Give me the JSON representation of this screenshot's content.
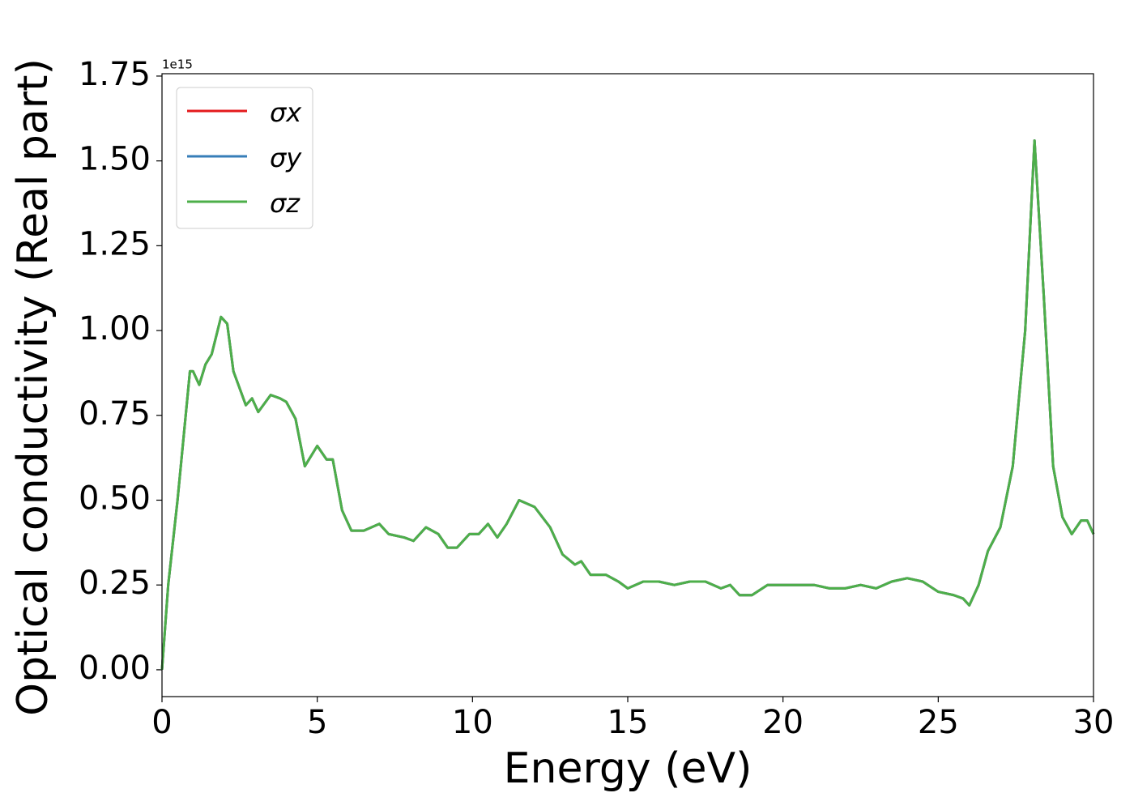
{
  "chart_data": {
    "type": "line",
    "x_label": "Energy (eV)",
    "y_label": "Optical conductivity (Real part)",
    "y_offset_label": "1e15",
    "x": [
      0,
      0.2,
      0.5,
      0.9,
      1.0,
      1.2,
      1.4,
      1.6,
      1.9,
      2.1,
      2.3,
      2.5,
      2.7,
      2.9,
      3.1,
      3.5,
      3.8,
      4.0,
      4.3,
      4.6,
      5.0,
      5.3,
      5.5,
      5.8,
      6.1,
      6.5,
      7.0,
      7.3,
      7.8,
      8.1,
      8.5,
      8.9,
      9.2,
      9.5,
      9.9,
      10.2,
      10.5,
      10.8,
      11.1,
      11.5,
      12.0,
      12.5,
      12.9,
      13.3,
      13.5,
      13.8,
      14.3,
      14.7,
      15.0,
      15.5,
      16.0,
      16.5,
      17.0,
      17.5,
      18.0,
      18.3,
      18.6,
      19.0,
      19.5,
      20.0,
      20.5,
      21.0,
      21.5,
      22.0,
      22.5,
      23.0,
      23.5,
      24.0,
      24.5,
      25.0,
      25.5,
      25.8,
      26.0,
      26.3,
      26.6,
      27.0,
      27.4,
      27.8,
      28.1,
      28.4,
      28.7,
      29.0,
      29.3,
      29.6,
      29.8,
      30.0
    ],
    "series": [
      {
        "name": "σx",
        "color": "#e41a1c",
        "values": [
          0,
          0.25,
          0.5,
          0.88,
          0.88,
          0.84,
          0.9,
          0.93,
          1.04,
          1.02,
          0.88,
          0.83,
          0.78,
          0.8,
          0.76,
          0.81,
          0.8,
          0.79,
          0.74,
          0.6,
          0.66,
          0.62,
          0.62,
          0.47,
          0.41,
          0.41,
          0.43,
          0.4,
          0.39,
          0.38,
          0.42,
          0.4,
          0.36,
          0.36,
          0.4,
          0.4,
          0.43,
          0.39,
          0.43,
          0.5,
          0.48,
          0.42,
          0.34,
          0.31,
          0.32,
          0.28,
          0.28,
          0.26,
          0.24,
          0.26,
          0.26,
          0.25,
          0.26,
          0.26,
          0.24,
          0.25,
          0.22,
          0.22,
          0.25,
          0.25,
          0.25,
          0.25,
          0.24,
          0.24,
          0.25,
          0.24,
          0.26,
          0.27,
          0.26,
          0.23,
          0.22,
          0.21,
          0.19,
          0.25,
          0.35,
          0.42,
          0.6,
          1.0,
          1.56,
          1.1,
          0.6,
          0.45,
          0.4,
          0.44,
          0.44,
          0.4
        ]
      },
      {
        "name": "σy",
        "color": "#377eb8",
        "values": [
          0,
          0.25,
          0.5,
          0.88,
          0.88,
          0.84,
          0.9,
          0.93,
          1.04,
          1.02,
          0.88,
          0.83,
          0.78,
          0.8,
          0.76,
          0.81,
          0.8,
          0.79,
          0.74,
          0.6,
          0.66,
          0.62,
          0.62,
          0.47,
          0.41,
          0.41,
          0.43,
          0.4,
          0.39,
          0.38,
          0.42,
          0.4,
          0.36,
          0.36,
          0.4,
          0.4,
          0.43,
          0.39,
          0.43,
          0.5,
          0.48,
          0.42,
          0.34,
          0.31,
          0.32,
          0.28,
          0.28,
          0.26,
          0.24,
          0.26,
          0.26,
          0.25,
          0.26,
          0.26,
          0.24,
          0.25,
          0.22,
          0.22,
          0.25,
          0.25,
          0.25,
          0.25,
          0.24,
          0.24,
          0.25,
          0.24,
          0.26,
          0.27,
          0.26,
          0.23,
          0.22,
          0.21,
          0.19,
          0.25,
          0.35,
          0.42,
          0.6,
          1.0,
          1.56,
          1.1,
          0.6,
          0.45,
          0.4,
          0.44,
          0.44,
          0.4
        ]
      },
      {
        "name": "σz",
        "color": "#4daf4a",
        "values": [
          0,
          0.25,
          0.5,
          0.88,
          0.88,
          0.84,
          0.9,
          0.93,
          1.04,
          1.02,
          0.88,
          0.83,
          0.78,
          0.8,
          0.76,
          0.81,
          0.8,
          0.79,
          0.74,
          0.6,
          0.66,
          0.62,
          0.62,
          0.47,
          0.41,
          0.41,
          0.43,
          0.4,
          0.39,
          0.38,
          0.42,
          0.4,
          0.36,
          0.36,
          0.4,
          0.4,
          0.43,
          0.39,
          0.43,
          0.5,
          0.48,
          0.42,
          0.34,
          0.31,
          0.32,
          0.28,
          0.28,
          0.26,
          0.24,
          0.26,
          0.26,
          0.25,
          0.26,
          0.26,
          0.24,
          0.25,
          0.22,
          0.22,
          0.25,
          0.25,
          0.25,
          0.25,
          0.24,
          0.24,
          0.25,
          0.24,
          0.26,
          0.27,
          0.26,
          0.23,
          0.22,
          0.21,
          0.19,
          0.25,
          0.35,
          0.42,
          0.6,
          1.0,
          1.56,
          1.1,
          0.6,
          0.45,
          0.4,
          0.44,
          0.44,
          0.4
        ]
      }
    ],
    "xlim": [
      0,
      30
    ],
    "xticks": [
      0,
      5,
      10,
      15,
      20,
      25,
      30
    ],
    "ylim": [
      -0.079,
      1.757
    ],
    "yticks": [
      {
        "value": 0,
        "label": "0.00"
      },
      {
        "value": 0.25,
        "label": "0.25"
      },
      {
        "value": 0.5,
        "label": "0.50"
      },
      {
        "value": 0.75,
        "label": "0.75"
      },
      {
        "value": 1.0,
        "label": "1.00"
      },
      {
        "value": 1.25,
        "label": "1.25"
      },
      {
        "value": 1.5,
        "label": "1.50"
      },
      {
        "value": 1.75,
        "label": "1.75"
      }
    ],
    "legend": "upper-left",
    "grid": false
  }
}
